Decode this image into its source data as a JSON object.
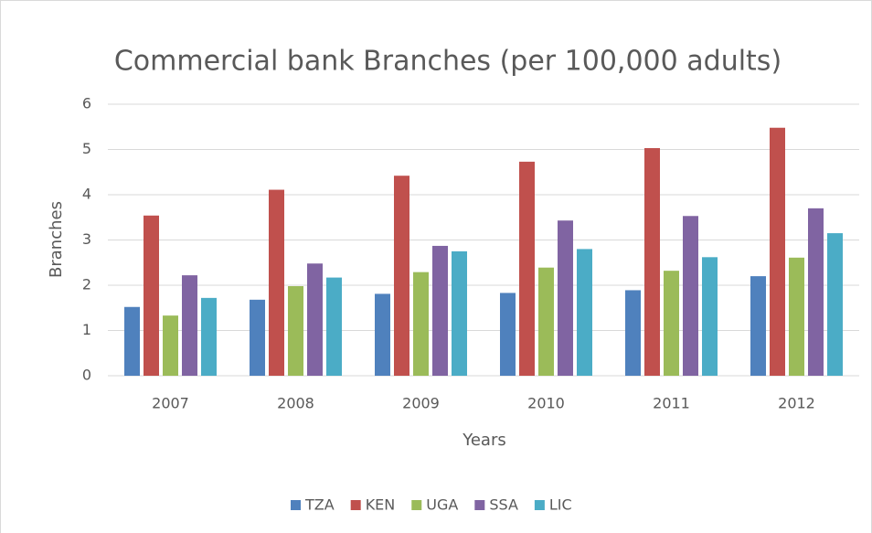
{
  "chart_data": {
    "type": "bar",
    "title": "Commercial bank Branches (per 100,000 adults)",
    "x_label": "Years",
    "y_label": "Branches",
    "categories": [
      "2007",
      "2008",
      "2009",
      "2010",
      "2011",
      "2012"
    ],
    "series": [
      {
        "name": "TZA",
        "color": "#4f81bd",
        "values": [
          1.52,
          1.68,
          1.81,
          1.83,
          1.89,
          2.2
        ]
      },
      {
        "name": "KEN",
        "color": "#c0504d",
        "values": [
          3.54,
          4.11,
          4.42,
          4.73,
          5.03,
          5.48
        ]
      },
      {
        "name": "UGA",
        "color": "#9bbb59",
        "values": [
          1.33,
          1.98,
          2.29,
          2.39,
          2.32,
          2.61
        ]
      },
      {
        "name": "SSA",
        "color": "#8064a2",
        "values": [
          2.22,
          2.48,
          2.87,
          3.43,
          3.53,
          3.7
        ]
      },
      {
        "name": "LIC",
        "color": "#4bacc6",
        "values": [
          1.72,
          2.17,
          2.75,
          2.8,
          2.62,
          3.15
        ]
      }
    ],
    "ylim": [
      0,
      6
    ],
    "yticks": [
      0,
      1,
      2,
      3,
      4,
      5,
      6
    ],
    "grid": true,
    "legend": "bottom"
  }
}
